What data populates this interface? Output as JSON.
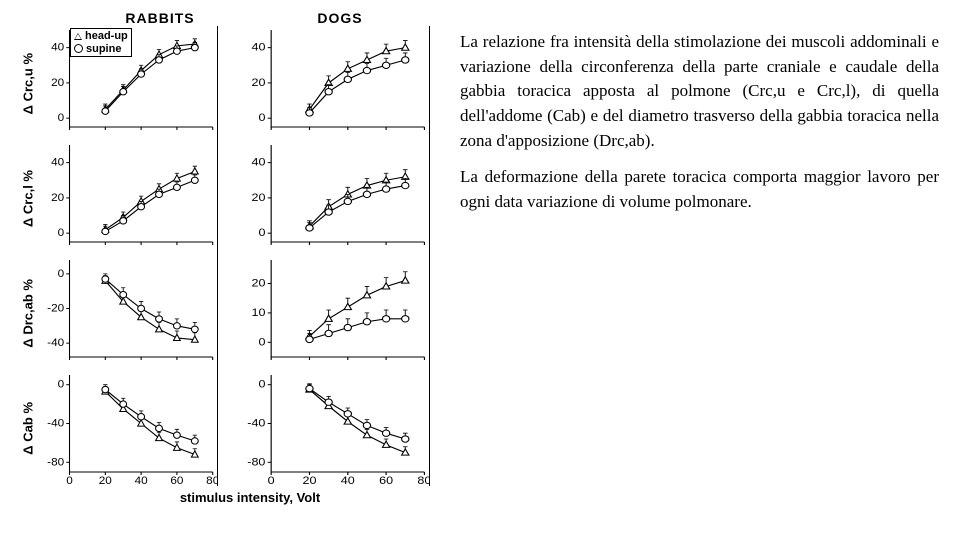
{
  "columns": [
    {
      "header": "RABBITS",
      "xticks": [
        0,
        20,
        40,
        60,
        80
      ],
      "xlim": [
        0,
        80
      ]
    },
    {
      "header": "DOGS",
      "xticks": [
        0,
        20,
        40,
        60,
        80
      ],
      "xlim": [
        0,
        80
      ]
    }
  ],
  "xlabel": "stimulus intensity, Volt",
  "rows": [
    {
      "ylabel": "Δ Crc,u %",
      "yticks_col0": [
        0,
        20,
        40
      ],
      "ylim_col0": [
        -5,
        50
      ],
      "yticks_col1": [
        0,
        20,
        40
      ],
      "ylim_col1": [
        -5,
        50
      ]
    },
    {
      "ylabel": "Δ Crc,l %",
      "yticks_col0": [
        0,
        20,
        40
      ],
      "ylim_col0": [
        -5,
        50
      ],
      "yticks_col1": [
        0,
        20,
        40
      ],
      "ylim_col1": [
        -5,
        50
      ]
    },
    {
      "ylabel": "Δ Drc,ab %",
      "yticks_col0": [
        -40,
        -20,
        0
      ],
      "ylim_col0": [
        -48,
        8
      ],
      "yticks_col1": [
        0,
        10,
        20
      ],
      "ylim_col1": [
        -5,
        28
      ]
    },
    {
      "ylabel": "Δ Cab %",
      "yticks_col0": [
        -80,
        -40,
        0
      ],
      "ylim_col0": [
        -90,
        10
      ],
      "yticks_col1": [
        -80,
        -40,
        0
      ],
      "ylim_col1": [
        -90,
        10
      ]
    }
  ],
  "legend": {
    "items": [
      {
        "marker": "triangle",
        "label": "head-up"
      },
      {
        "marker": "circle",
        "label": "supine"
      }
    ]
  },
  "style": {
    "marker_size": 3.2,
    "errbar_len": 5,
    "line_width": 1.1,
    "tick_fontsize": 11,
    "font_color": "#000000"
  },
  "panels": [
    {
      "row": 0,
      "col": 0,
      "series": [
        {
          "marker": "triangle",
          "x": [
            20,
            30,
            40,
            50,
            60,
            70
          ],
          "y": [
            5,
            16,
            27,
            36,
            41,
            42
          ],
          "err": [
            3,
            3,
            3,
            3,
            3,
            3
          ]
        },
        {
          "marker": "circle",
          "x": [
            20,
            30,
            40,
            50,
            60,
            70
          ],
          "y": [
            4,
            15,
            25,
            33,
            38,
            40
          ],
          "err": [
            3,
            3,
            3,
            3,
            3,
            3
          ]
        }
      ],
      "show_legend": true
    },
    {
      "row": 0,
      "col": 1,
      "series": [
        {
          "marker": "triangle",
          "x": [
            20,
            30,
            40,
            50,
            60,
            70
          ],
          "y": [
            5,
            20,
            28,
            33,
            38,
            40
          ],
          "err": [
            3,
            4,
            4,
            4,
            4,
            4
          ]
        },
        {
          "marker": "circle",
          "x": [
            20,
            30,
            40,
            50,
            60,
            70
          ],
          "y": [
            3,
            15,
            22,
            27,
            30,
            33
          ],
          "err": [
            3,
            4,
            4,
            4,
            4,
            4
          ]
        }
      ]
    },
    {
      "row": 1,
      "col": 0,
      "series": [
        {
          "marker": "triangle",
          "x": [
            20,
            30,
            40,
            50,
            60,
            70
          ],
          "y": [
            2,
            9,
            18,
            25,
            31,
            35
          ],
          "err": [
            3,
            3,
            3,
            3,
            3,
            3
          ]
        },
        {
          "marker": "circle",
          "x": [
            20,
            30,
            40,
            50,
            60,
            70
          ],
          "y": [
            1,
            7,
            15,
            22,
            26,
            30
          ],
          "err": [
            3,
            3,
            3,
            3,
            3,
            3
          ]
        }
      ]
    },
    {
      "row": 1,
      "col": 1,
      "series": [
        {
          "marker": "triangle",
          "x": [
            20,
            30,
            40,
            50,
            60,
            70
          ],
          "y": [
            4,
            15,
            22,
            27,
            30,
            32
          ],
          "err": [
            3,
            4,
            4,
            4,
            4,
            4
          ]
        },
        {
          "marker": "circle",
          "x": [
            20,
            30,
            40,
            50,
            60,
            70
          ],
          "y": [
            3,
            12,
            18,
            22,
            25,
            27
          ],
          "err": [
            3,
            4,
            4,
            4,
            4,
            4
          ]
        }
      ]
    },
    {
      "row": 2,
      "col": 0,
      "series": [
        {
          "marker": "triangle",
          "x": [
            20,
            30,
            40,
            50,
            60,
            70
          ],
          "y": [
            -4,
            -16,
            -25,
            -32,
            -37,
            -38
          ],
          "err": [
            3,
            4,
            4,
            4,
            4,
            4
          ]
        },
        {
          "marker": "circle",
          "x": [
            20,
            30,
            40,
            50,
            60,
            70
          ],
          "y": [
            -3,
            -12,
            -20,
            -26,
            -30,
            -32
          ],
          "err": [
            3,
            4,
            4,
            4,
            4,
            4
          ]
        }
      ]
    },
    {
      "row": 2,
      "col": 1,
      "series": [
        {
          "marker": "triangle",
          "x": [
            20,
            30,
            40,
            50,
            60,
            70
          ],
          "y": [
            2,
            8,
            12,
            16,
            19,
            21
          ],
          "err": [
            2,
            3,
            3,
            3,
            3,
            3
          ]
        },
        {
          "marker": "circle",
          "x": [
            20,
            30,
            40,
            50,
            60,
            70
          ],
          "y": [
            1,
            3,
            5,
            7,
            8,
            8
          ],
          "err": [
            2,
            3,
            3,
            3,
            3,
            3
          ]
        }
      ]
    },
    {
      "row": 3,
      "col": 0,
      "series": [
        {
          "marker": "triangle",
          "x": [
            20,
            30,
            40,
            50,
            60,
            70
          ],
          "y": [
            -7,
            -25,
            -40,
            -55,
            -65,
            -72
          ],
          "err": [
            5,
            6,
            6,
            6,
            6,
            6
          ]
        },
        {
          "marker": "circle",
          "x": [
            20,
            30,
            40,
            50,
            60,
            70
          ],
          "y": [
            -5,
            -20,
            -33,
            -45,
            -52,
            -58
          ],
          "err": [
            5,
            6,
            6,
            6,
            6,
            6
          ]
        }
      ]
    },
    {
      "row": 3,
      "col": 1,
      "series": [
        {
          "marker": "triangle",
          "x": [
            20,
            30,
            40,
            50,
            60,
            70
          ],
          "y": [
            -5,
            -22,
            -38,
            -52,
            -62,
            -70
          ],
          "err": [
            5,
            6,
            6,
            6,
            6,
            6
          ]
        },
        {
          "marker": "circle",
          "x": [
            20,
            30,
            40,
            50,
            60,
            70
          ],
          "y": [
            -4,
            -18,
            -30,
            -42,
            -50,
            -56
          ],
          "err": [
            5,
            6,
            6,
            6,
            6,
            6
          ]
        }
      ]
    }
  ],
  "paragraphs": [
    "La relazione fra intensità della stimolazione dei muscoli addominali e variazione della circonferenza della parte craniale e caudale della gabbia toracica apposta al polmone (Crc,u e Crc,l), di quella dell'addome (Cab) e del diametro trasverso della gabbia toracica nella zona d'apposizione (Drc,ab).",
    "La deformazione della parete toracica comporta maggior lavoro per ogni data variazione di volume polmonare."
  ]
}
